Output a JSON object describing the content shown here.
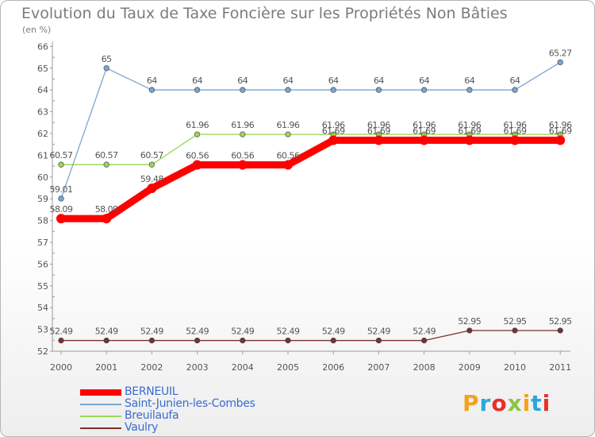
{
  "title": "Evolution du Taux de Taxe Foncière sur les Propriétés Non Bâties",
  "subtitle": "(en %)",
  "brand": "Proxiti",
  "brand_colors": [
    "#f2a31b",
    "#2aa7df",
    "#e6302a",
    "#8cc540",
    "#f2a31b",
    "#2aa7df",
    "#e6302a"
  ],
  "chart_data": {
    "type": "line",
    "title": "Evolution du Taux de Taxe Foncière sur les Propriétés Non Bâties",
    "ylabel": "(en %)",
    "xlabel": "",
    "categories": [
      "2000",
      "2001",
      "2002",
      "2003",
      "2004",
      "2005",
      "2006",
      "2007",
      "2008",
      "2009",
      "2010",
      "2011"
    ],
    "ylim": [
      52,
      66
    ],
    "yticks": [
      "52",
      "53",
      "54",
      "55",
      "56",
      "57",
      "58",
      "59",
      "60",
      "61",
      "62",
      "63",
      "64",
      "65",
      "66"
    ],
    "grid": false,
    "legend_position": "bottom-left",
    "series": [
      {
        "name": "BERNEUIL",
        "color": "#ff0000",
        "values": [
          58.09,
          58.09,
          59.48,
          60.56,
          60.56,
          60.56,
          61.69,
          61.69,
          61.69,
          61.69,
          61.69,
          61.69
        ],
        "labels": [
          "58.09",
          "58.09",
          "59.48",
          "60.56",
          "60.56",
          "60.56",
          "61.69",
          "61.69",
          "61.69",
          "61.69",
          "61.69",
          "61.69"
        ]
      },
      {
        "name": "Saint-Junien-les-Combes",
        "color": "#78a6d6",
        "values": [
          59.01,
          65,
          64,
          64,
          64,
          64,
          64,
          64,
          64,
          64,
          64,
          65.27
        ],
        "labels": [
          "59.01",
          "65",
          "64",
          "64",
          "64",
          "64",
          "64",
          "64",
          "64",
          "64",
          "64",
          "65.27"
        ]
      },
      {
        "name": "Breuilaufa",
        "color": "#9ad65a",
        "values": [
          60.57,
          60.57,
          60.57,
          61.96,
          61.96,
          61.96,
          61.96,
          61.96,
          61.96,
          61.96,
          61.96,
          61.96
        ],
        "labels": [
          "60.57",
          "60.57",
          "60.57",
          "61.96",
          "61.96",
          "61.96",
          "61.96",
          "61.96",
          "61.96",
          "61.96",
          "61.96",
          "61.96"
        ]
      },
      {
        "name": "Vaulry",
        "color": "#7a3030",
        "values": [
          52.49,
          52.49,
          52.49,
          52.49,
          52.49,
          52.49,
          52.49,
          52.49,
          52.49,
          52.95,
          52.95,
          52.95
        ],
        "labels": [
          "52.49",
          "52.49",
          "52.49",
          "52.49",
          "52.49",
          "52.49",
          "52.49",
          "52.49",
          "52.49",
          "52.95",
          "52.95",
          "52.95"
        ]
      }
    ]
  }
}
